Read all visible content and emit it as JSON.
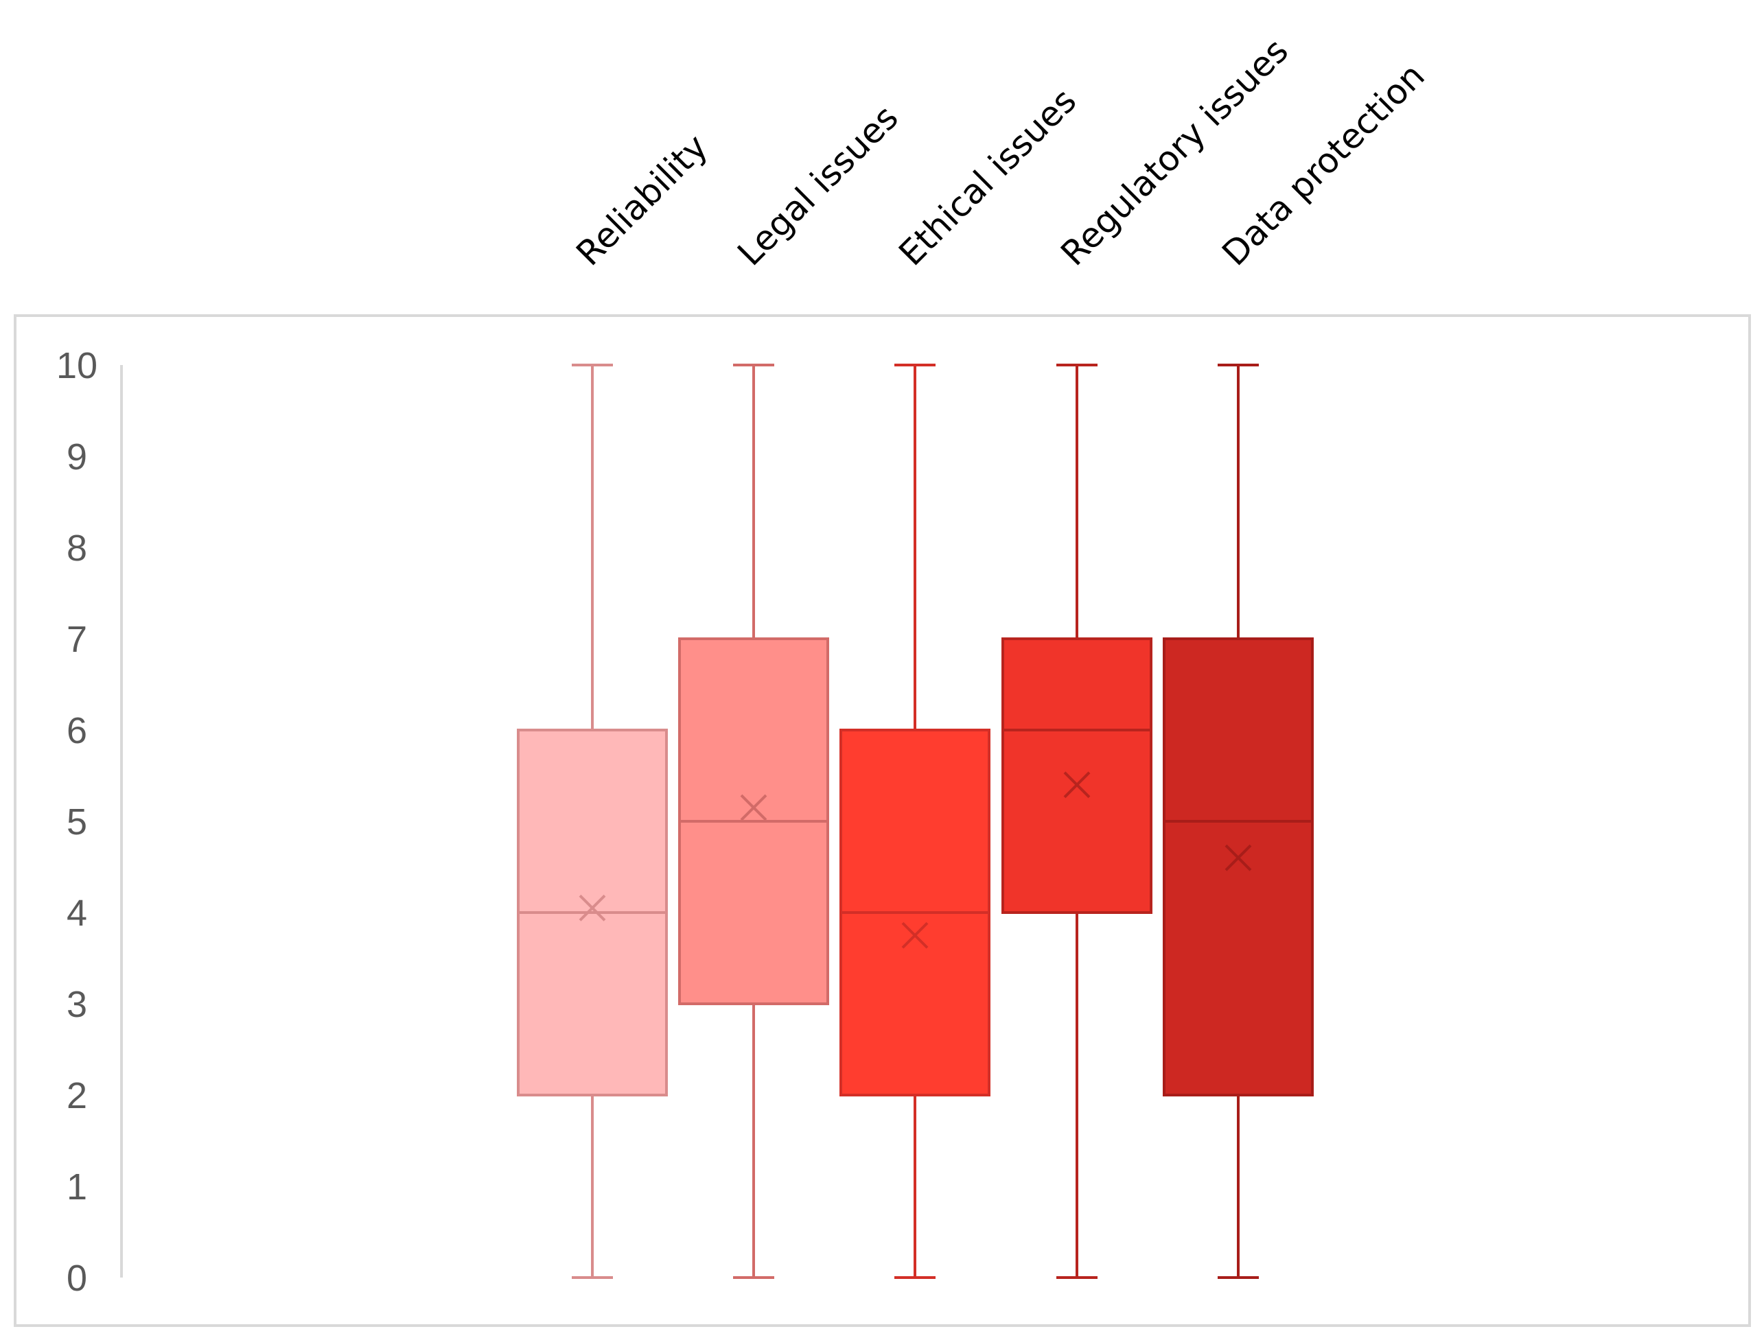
{
  "chart_data": {
    "type": "box",
    "title": "",
    "xlabel": "",
    "ylabel": "",
    "ylim": [
      0,
      10
    ],
    "y_ticks": [
      0,
      1,
      2,
      3,
      4,
      5,
      6,
      7,
      8,
      9,
      10
    ],
    "grid": false,
    "legend": "none",
    "categories": [
      "Reliability",
      "Legal issues",
      "Ethical issues",
      "Regulatory issues",
      "Data protection"
    ],
    "boxes": [
      {
        "category": "Reliability",
        "min": 0,
        "q1": 2,
        "median": 4,
        "q3": 6,
        "max": 10,
        "mean": 4.05,
        "fill": "#ffb8b8",
        "stroke": "#d98c8c"
      },
      {
        "category": "Legal issues",
        "min": 0,
        "q1": 3,
        "median": 5,
        "q3": 7,
        "max": 10,
        "mean": 5.15,
        "fill": "#ff8f8a",
        "stroke": "#d26b68"
      },
      {
        "category": "Ethical issues",
        "min": 0,
        "q1": 2,
        "median": 4,
        "q3": 6,
        "max": 10,
        "mean": 3.75,
        "fill": "#ff3d2f",
        "stroke": "#d32f27"
      },
      {
        "category": "Regulatory issues",
        "min": 0,
        "q1": 4,
        "median": 6,
        "q3": 7,
        "max": 10,
        "mean": 5.4,
        "fill": "#f0342a",
        "stroke": "#b8241e"
      },
      {
        "category": "Data protection",
        "min": 0,
        "q1": 2,
        "median": 5,
        "q3": 7,
        "max": 10,
        "mean": 4.6,
        "fill": "#cd2822",
        "stroke": "#a81d19"
      }
    ]
  }
}
